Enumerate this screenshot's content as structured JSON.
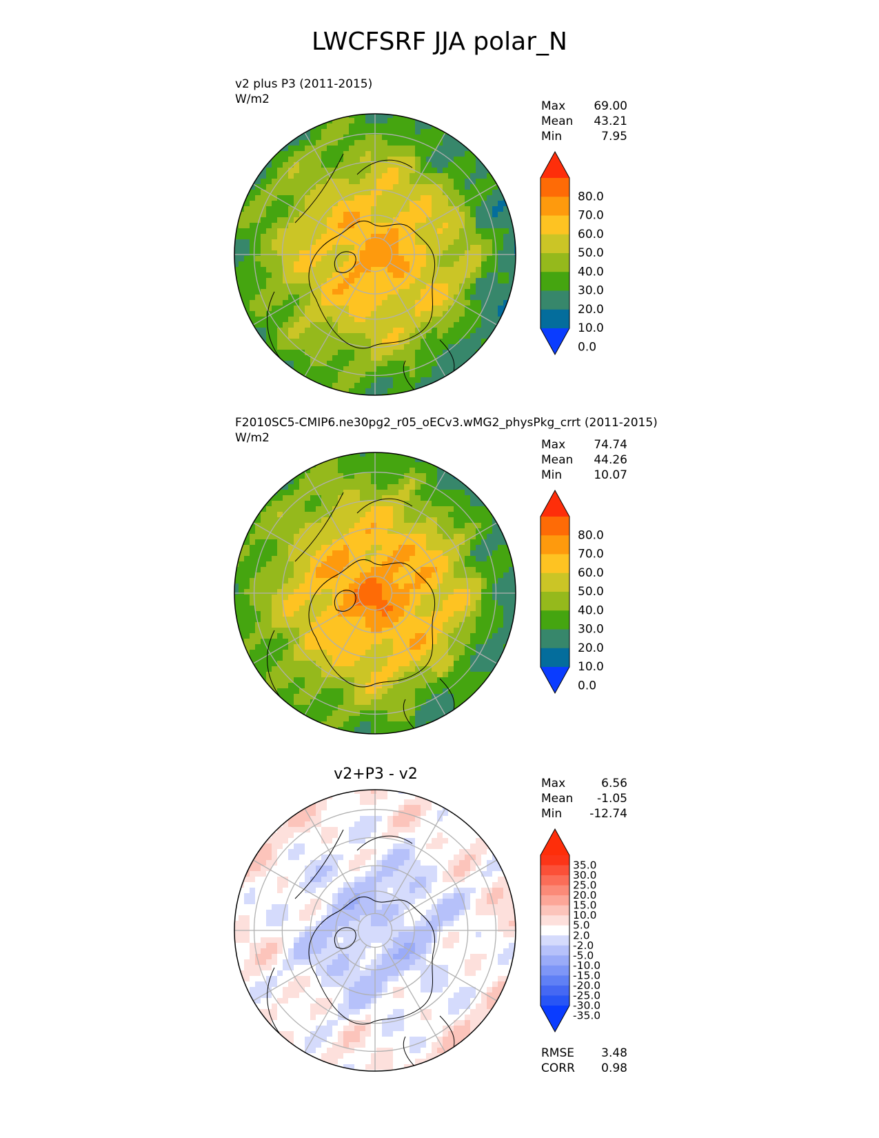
{
  "figure": {
    "title": "LWCFSRF JJA polar_N"
  },
  "chart_data": [
    {
      "type": "heatmap",
      "projection": "polar stereographic (north)",
      "title": "",
      "label_line1": "v2 plus P3 (2011-2015)",
      "label_line2": "W/m2",
      "stats": [
        {
          "label": "Max",
          "value": "69.00"
        },
        {
          "label": "Mean",
          "value": "43.21"
        },
        {
          "label": "Min",
          "value": "7.95"
        }
      ],
      "colorbar": {
        "levels": [
          0,
          10,
          20,
          30,
          40,
          50,
          60,
          70,
          80
        ],
        "tick_labels": [
          "80.0",
          "70.0",
          "60.0",
          "50.0",
          "40.0",
          "30.0",
          "20.0",
          "10.0",
          "0.0"
        ],
        "colors": [
          "#0a3cff",
          "#046d9c",
          "#37876b",
          "#45a510",
          "#95b91c",
          "#cbc526",
          "#fec322",
          "#fe9a0d",
          "#fe6b06",
          "#fe2e0a"
        ]
      },
      "field": {
        "pole": 62,
        "ring1": 58,
        "ring2": 50,
        "ring3": 42,
        "ring4": 32,
        "edge": 22
      }
    },
    {
      "type": "heatmap",
      "projection": "polar stereographic (north)",
      "title": "",
      "label_line1": "F2010SC5-CMIP6.ne30pg2_r05_oECv3.wMG2_physPkg_crrt (2011-2015)",
      "label_line2": "W/m2",
      "stats": [
        {
          "label": "Max",
          "value": "74.74"
        },
        {
          "label": "Mean",
          "value": "44.26"
        },
        {
          "label": "Min",
          "value": "10.07"
        }
      ],
      "colorbar": {
        "levels": [
          0,
          10,
          20,
          30,
          40,
          50,
          60,
          70,
          80
        ],
        "tick_labels": [
          "80.0",
          "70.0",
          "60.0",
          "50.0",
          "40.0",
          "30.0",
          "20.0",
          "10.0",
          "0.0"
        ],
        "colors": [
          "#0a3cff",
          "#046d9c",
          "#37876b",
          "#45a510",
          "#95b91c",
          "#cbc526",
          "#fec322",
          "#fe9a0d",
          "#fe6b06",
          "#fe2e0a"
        ]
      },
      "field": {
        "pole": 72,
        "ring1": 62,
        "ring2": 55,
        "ring3": 45,
        "ring4": 34,
        "edge": 24
      }
    },
    {
      "type": "heatmap",
      "projection": "polar stereographic (north)",
      "title": "v2+P3 - v2",
      "label_line1": "",
      "label_line2": "",
      "stats": [
        {
          "label": "Max",
          "value": "6.56"
        },
        {
          "label": "Mean",
          "value": "-1.05"
        },
        {
          "label": "Min",
          "value": "-12.74"
        }
      ],
      "metrics": [
        {
          "label": "RMSE",
          "value": "3.48"
        },
        {
          "label": "CORR",
          "value": "0.98"
        }
      ],
      "colorbar": {
        "levels": [
          -35,
          -30,
          -25,
          -20,
          -15,
          -10,
          -5,
          -2,
          2,
          5,
          10,
          15,
          20,
          25,
          30,
          35
        ],
        "tick_labels": [
          "35.0",
          "30.0",
          "25.0",
          "20.0",
          "15.0",
          "10.0",
          "5.0",
          "2.0",
          "-2.0",
          "-5.0",
          "-10.0",
          "-15.0",
          "-20.0",
          "-25.0",
          "-30.0",
          "-35.0"
        ],
        "colors": [
          "#0a3cff",
          "#2855f5",
          "#4568f3",
          "#6080f5",
          "#7e96f7",
          "#9aabf8",
          "#b6c1fa",
          "#d5dbfc",
          "#ffffff",
          "#fde0dc",
          "#fcc4bb",
          "#fca698",
          "#fb8a78",
          "#fb6d58",
          "#fb5038",
          "#fc3518",
          "#fe2e0a"
        ]
      },
      "field": {
        "pole": -2,
        "ring1": -6,
        "ring2": -4,
        "ring3": -1,
        "ring4": 1,
        "edge": 2
      }
    }
  ]
}
